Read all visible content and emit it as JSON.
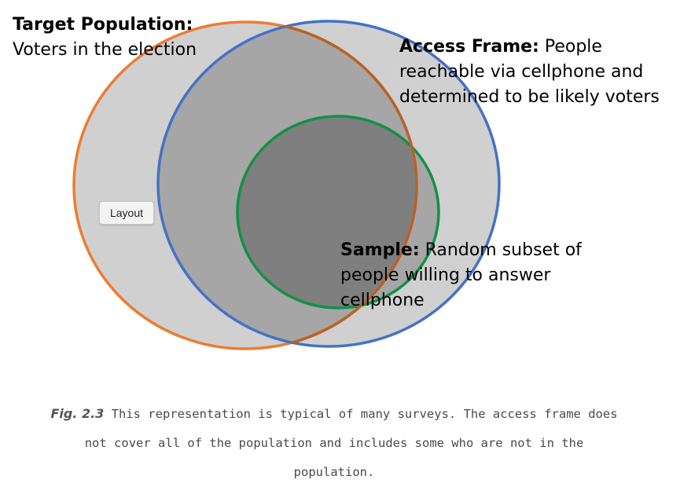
{
  "labels": {
    "target_title": "Target Population:",
    "target_text": "Voters in the election",
    "access_title": "Access Frame:",
    "access_text": "People reachable via cellphone and determined to be likely voters",
    "sample_title": "Sample:",
    "sample_text": "Random subset of people willing to answer cellphone"
  },
  "layout_button": "Layout",
  "caption": {
    "fig": "Fig. 2.3",
    "text": "This representation is typical of many surveys. The access frame does not cover all of the population and includes some who are not in the population."
  },
  "colors": {
    "target": "#ED7D31",
    "access": "#4472C4",
    "sample": "#149046",
    "overlap_fill": "#a6a6a6",
    "fill": "#d0d0d0",
    "sample_fill": "#7f7f7f"
  }
}
